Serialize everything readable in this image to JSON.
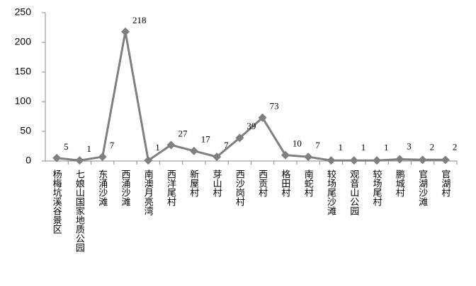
{
  "chart_data": {
    "type": "line",
    "categories": [
      "杨梅坑溪谷景区",
      "七娘山国家地质公园",
      "东涌沙滩",
      "西涌沙滩",
      "南澳月亮湾",
      "西洋尾村",
      "新屋村",
      "芽山村",
      "西沙岗村",
      "西贡村",
      "格田村",
      "南蛇村",
      "较场尾沙滩",
      "观音山公园",
      "较场尾村",
      "鹏城村",
      "官湖沙滩",
      "官湖村"
    ],
    "values": [
      5,
      1,
      7,
      218,
      1,
      27,
      17,
      7,
      39,
      73,
      10,
      7,
      1,
      1,
      1,
      3,
      2,
      2
    ],
    "color": "#7f7f7f",
    "ylim": [
      0,
      250
    ],
    "yticks": [
      0,
      50,
      100,
      150,
      200,
      250
    ],
    "grid": false
  }
}
